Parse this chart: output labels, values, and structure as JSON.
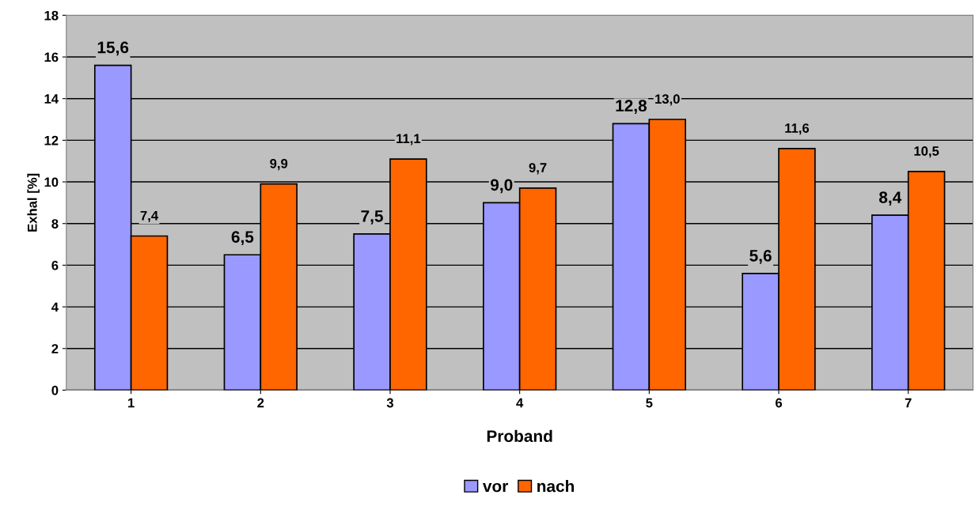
{
  "chart_data": {
    "type": "bar",
    "xlabel": "Proband",
    "ylabel": "Exhal [%]",
    "categories": [
      "1",
      "2",
      "3",
      "4",
      "5",
      "6",
      "7"
    ],
    "series": [
      {
        "name": "vor",
        "color": "#9999ff",
        "values": [
          15.6,
          6.5,
          7.5,
          9.0,
          12.8,
          5.6,
          8.4
        ],
        "value_labels": [
          "15,6",
          "6,5",
          "7,5",
          "9,0",
          "12,8",
          "5,6",
          "8,4"
        ]
      },
      {
        "name": "nach",
        "color": "#ff6600",
        "values": [
          7.4,
          9.9,
          11.1,
          9.7,
          13.0,
          11.6,
          10.5
        ],
        "value_labels": [
          "7,4",
          "9,9",
          "11,1",
          "9,7",
          "13,0",
          "11,6",
          "10,5"
        ]
      }
    ],
    "ylim": [
      0,
      18
    ],
    "yticks": [
      0,
      2,
      4,
      6,
      8,
      10,
      12,
      14,
      16,
      18
    ],
    "grid": "y",
    "legend": "bottom"
  }
}
